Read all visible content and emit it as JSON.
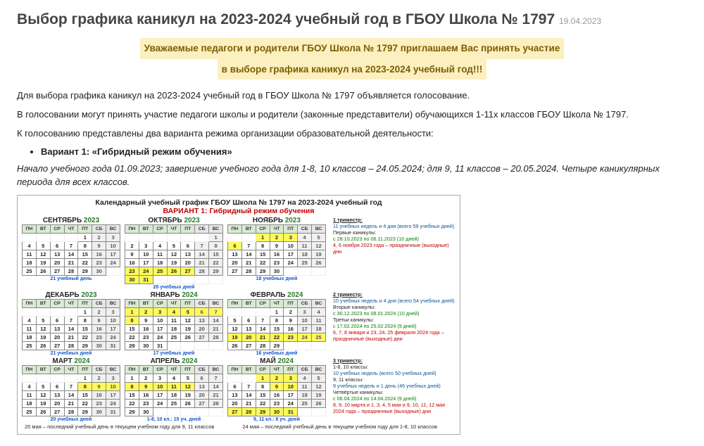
{
  "page_title": "Выбор графика каникул на 2023-2024 учебный год в ГБОУ Школа № 1797",
  "page_date": "19.04.2023",
  "highlight_line1": "Уважаемые педагоги и родители ГБОУ Школа № 1797 приглашаем Вас принять участие",
  "highlight_line2": "в выборе графика каникул на 2023-2024 учебный год!!!",
  "para1": "Для выбора графика каникул на 2023-2024 учебный год в ГБОУ Школа № 1797 объявляется голосование.",
  "para2": "В голосовании могут принять участие педагоги школы и родители (законные представители) обучающихся 1-11х классов ГБОУ Школа № 1797.",
  "para3": "К голосованию представлены два варианта режима организации образовательной деятельности:",
  "bullet1": "Вариант 1: «Гибридный режим обучения»",
  "para4_a": "Начало учебного года 01.09.2023; завершение учебного года для 1-8, 10 классов – 24.05.2024; для 9, 11 классов – 20.05.2024.",
  "para4_b": "Четыре каникулярных периода для всех классов.",
  "cal_title": "Календарный учебный график ГБОУ Школа № 1797 на 2023-2024 учебный год",
  "cal_subtitle": "ВАРИАНТ 1: Гибридный режим обучения",
  "dow": [
    "ПН",
    "ВТ",
    "СР",
    "ЧТ",
    "ПТ",
    "СБ",
    "ВС"
  ],
  "months": [
    {
      "name": "СЕНТЯБРЬ",
      "year": "2023",
      "foot": "21 учебный день",
      "startCol": 4,
      "days": 30,
      "hol": [],
      "wkend": []
    },
    {
      "name": "ОКТЯБРЬ",
      "year": "2023",
      "foot": "20 учебных дней",
      "startCol": 6,
      "days": 31,
      "hol": [
        23,
        24,
        25,
        26,
        27,
        30,
        31
      ],
      "wkend": []
    },
    {
      "name": "НОЯБРЬ",
      "year": "2023",
      "foot": "18 учебных дней",
      "startCol": 2,
      "days": 30,
      "hol": [
        1,
        2,
        3,
        6
      ],
      "wkend": []
    },
    {
      "name": "ДЕКАБРЬ",
      "year": "2023",
      "foot": "21 учебных дней",
      "startCol": 4,
      "days": 31,
      "hol": [],
      "wkend": []
    },
    {
      "name": "ЯНВАРЬ",
      "year": "2024",
      "foot": "17 учебных дней",
      "startCol": 0,
      "days": 31,
      "hol": [
        1,
        2,
        3,
        4,
        5,
        6,
        7,
        8
      ],
      "wkend": []
    },
    {
      "name": "ФЕВРАЛЬ",
      "year": "2024",
      "foot": "16 учебных дней",
      "startCol": 3,
      "days": 29,
      "hol": [
        19,
        20,
        21,
        22,
        23,
        24,
        25
      ],
      "wkend": []
    },
    {
      "name": "МАРТ",
      "year": "2024",
      "foot": "20 учебных дней",
      "startCol": 4,
      "days": 31,
      "hol": [
        8,
        9,
        10
      ],
      "wkend": []
    },
    {
      "name": "АПРЕЛЬ",
      "year": "2024",
      "foot": "1-8, 10 кл.: 15 уч. дней",
      "startCol": 0,
      "days": 30,
      "hol": [
        8,
        9,
        10,
        11,
        12
      ],
      "wkend": []
    },
    {
      "name": "МАЙ",
      "year": "2024",
      "foot": "9, 11 кл.: 8 уч. дней",
      "startCol": 2,
      "days": 31,
      "hol": [
        1,
        2,
        3,
        9,
        10,
        27,
        28,
        29,
        30,
        31
      ],
      "wkend": []
    }
  ],
  "trim1": {
    "head": "1 триместр:",
    "l1": "11 учебных недель и 4 дня (всего 59 учебных дней)",
    "l2": "Первые каникулы:",
    "l3": "с 28.10.2023 по 06.11.2023 (10 дней)",
    "l4": "4, 6 ноября 2023 года – праздничные (выходные) дни"
  },
  "trim2": {
    "head": "2 триместр:",
    "l1": "10 учебных недель и 4 дня (всего 54 учебных дней)",
    "l2": "Вторые каникулы:",
    "l3": "с 30.12.2023 по 08.01.2024 (10 дней)",
    "l4": "Третьи каникулы:",
    "l5": "с 17.02.2024 по 25.02.2024 (9 дней)",
    "l6": "6, 7, 8 января и 23, 24, 25 февраля 2024 года – праздничные (выходные) дни"
  },
  "trim3": {
    "head": "3 триместр:",
    "l1": "1-8, 10 классы:",
    "l2": "10 учебных недель (всего 50 учебных дней)",
    "l3": "9, 11 классы:",
    "l4": "9 учебных недель и 1 день (46 учебных дней)",
    "l5": "Четвёртые каникулы:",
    "l6": "с 06.04.2024 по 14.04.2024 (9 дней)",
    "l7": "8, 9, 10 марта и 1, 3, 4, 5 мая и 9, 10, 11, 12 мая 2024 года – праздничные (выходные) дни"
  },
  "bottom_note_1": "20 мая – последний учебный день в текущем учебном году для 9, 11 классов",
  "bottom_note_2": "24 мая – последний учебный день в текущем учебном году для 1-8, 10 классов"
}
